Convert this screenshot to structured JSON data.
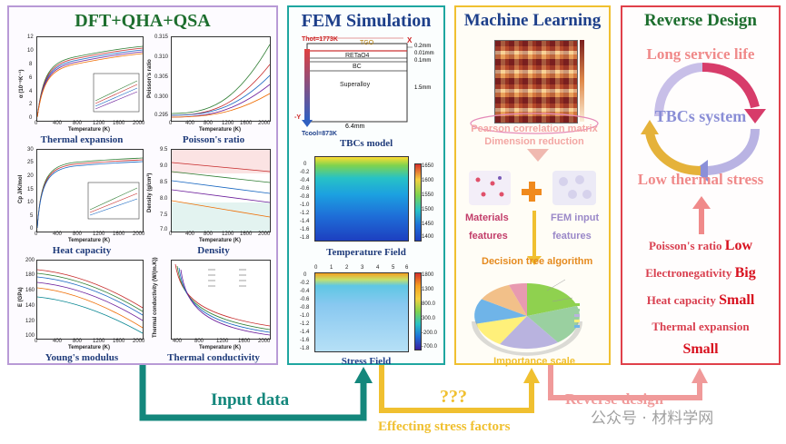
{
  "panels": {
    "dft": {
      "title": "DFT+QHA+QSA",
      "thermal_expansion": {
        "caption": "Thermal expansion",
        "ylabel": "α (10⁻⁶K⁻¹)",
        "xlabel": "Temperature (K)",
        "yticks": [
          "12",
          "10",
          "8",
          "6",
          "4",
          "2",
          "0"
        ],
        "xticks": [
          "0",
          "400",
          "800",
          "1200",
          "1600",
          "2000"
        ]
      },
      "poisson": {
        "caption": "Poisson's ratio",
        "ylabel": "Poisson's ratio",
        "xlabel": "Temperature (K)",
        "yticks": [
          "0.315",
          "0.310",
          "0.305",
          "0.300",
          "0.295"
        ],
        "xticks": [
          "0",
          "400",
          "800",
          "1200",
          "1600",
          "2000"
        ]
      },
      "heat_capacity": {
        "caption": "Heat capacity",
        "ylabel": "Cp J/K/mol",
        "xlabel": "Temperature (K)",
        "yticks": [
          "30",
          "25",
          "20",
          "15",
          "10",
          "5",
          "0"
        ],
        "xticks": [
          "0",
          "400",
          "800",
          "1200",
          "1600",
          "2000"
        ]
      },
      "density": {
        "caption": "Density",
        "ylabel": "Density (g/cm³)",
        "xlabel": "Temperature (K)",
        "yticks": [
          "9.5",
          "9.0",
          "8.5",
          "8.0",
          "7.5",
          "7.0"
        ],
        "xticks": [
          "0",
          "400",
          "800",
          "1200",
          "1600",
          "2000"
        ]
      },
      "youngs": {
        "caption": "Young's modulus",
        "ylabel": "E (GPa)",
        "xlabel": "Temperature (K)",
        "yticks": [
          "200",
          "180",
          "160",
          "140",
          "120",
          "100"
        ],
        "xticks": [
          "0",
          "400",
          "800",
          "1200",
          "1600",
          "2000"
        ]
      },
      "conductivity": {
        "caption": "Thermal conductivity",
        "ylabel": "Thermal conductivity (W/(m.K))",
        "xlabel": "Temperature (K)",
        "xticks": [
          "400",
          "800",
          "1200",
          "1600",
          "2000"
        ]
      }
    },
    "fem": {
      "title": "FEM Simulation",
      "model_caption": "TBCs model",
      "t_hot": "Thot=1773K",
      "t_cool": "Tcool=873K",
      "layers": [
        "TGO",
        "RETaO4",
        "BC",
        "Superalloy"
      ],
      "thicknesses": [
        "0.2mm",
        "0.01mm",
        "0.1mm",
        "1.5mm"
      ],
      "width": "6.4mm",
      "axis_x": "X",
      "axis_y": "-Y",
      "temp_caption": "Temperature Field",
      "temp_scale": [
        "1650",
        "1600",
        "1550",
        "1500",
        "1450",
        "1400"
      ],
      "stress_caption": "Stress Field",
      "stress_scale": [
        "1800",
        "1300",
        "800.0",
        "300.0",
        "-200.0",
        "-700.0"
      ],
      "depth_ticks": [
        "0",
        "-0.2",
        "-0.4",
        "-0.6",
        "-0.8",
        "-1.0",
        "-1.2",
        "-1.4",
        "-1.6",
        "-1.8"
      ],
      "width_ticks": [
        "0",
        "1",
        "2",
        "3",
        "4",
        "5",
        "6"
      ]
    },
    "ml": {
      "title": "Machine Learning",
      "pearson": "Pearson correlation matrix",
      "dim_reduction": "Dimension reduction",
      "materials": "Materials",
      "features_left": "features",
      "fem_input": "FEM input",
      "features_right": "features",
      "decision": "Decision  tree algorithm",
      "importance": "Importance scale"
    },
    "reverse": {
      "title": "Reverse Design",
      "long_life": "Long service life",
      "tbcs": "TBCs system",
      "low_stress": "Low thermal stress",
      "props": [
        {
          "name": "Poisson's ratio",
          "value": "Low"
        },
        {
          "name": "Electronegativity",
          "value": "Big"
        },
        {
          "name": "Heat capacity",
          "value": "Small"
        },
        {
          "name": "Thermal expansion",
          "value": ""
        }
      ],
      "last_value": "Small"
    }
  },
  "flows": {
    "input_data": "Input data",
    "question": "???",
    "effecting": "Effecting stress factors",
    "reverse_design": "Reverse design"
  },
  "watermark": "公众号 · 材料学网",
  "colors": {
    "dft_border": "#b89ad6",
    "fem_border": "#1fa6a0",
    "ml_border": "#f0c030",
    "reverse_border": "#e0404a",
    "teal_arrow": "#14877c",
    "gold_arrow": "#f0c030",
    "pink_arrow": "#f09a9a"
  }
}
